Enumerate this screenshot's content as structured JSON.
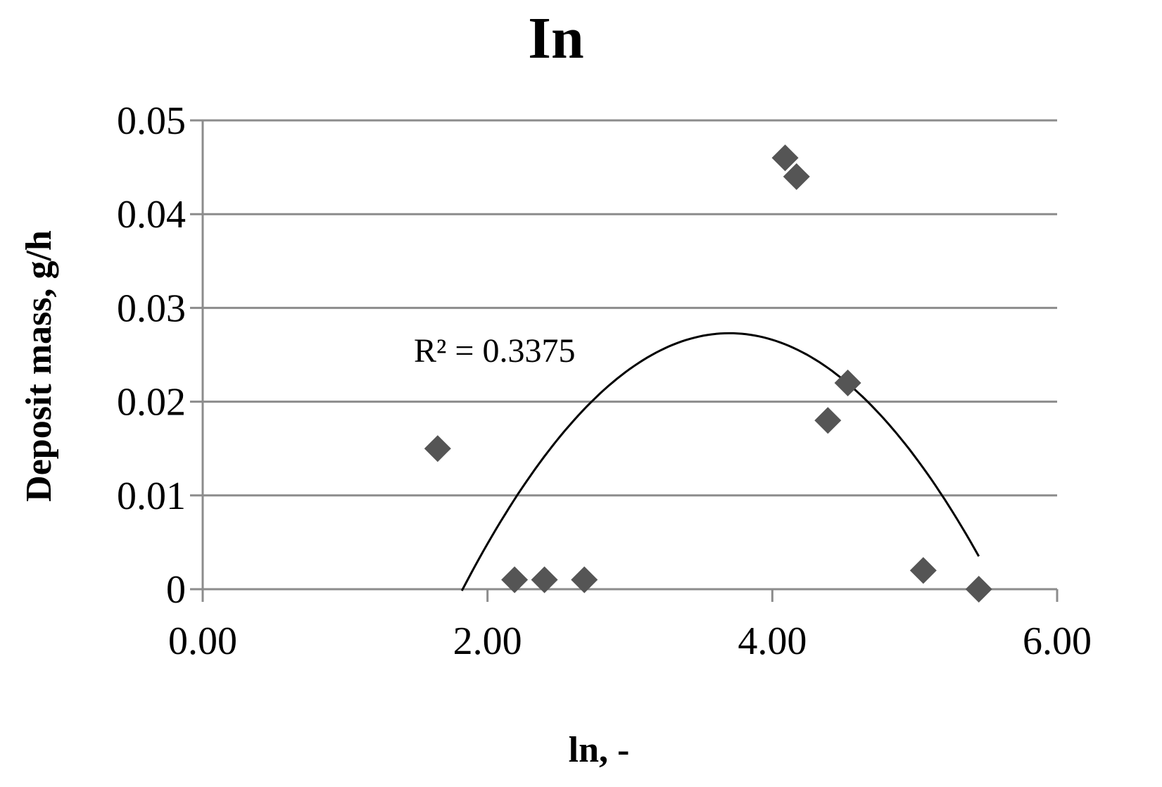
{
  "chart_data": {
    "type": "scatter",
    "title": "In",
    "xlabel": "ln, -",
    "ylabel": "Deposit mass, g/h",
    "xlim": [
      0,
      6
    ],
    "ylim": [
      0,
      0.05
    ],
    "x_ticks": [
      0,
      2,
      4,
      6
    ],
    "x_tick_labels": [
      "0.00",
      "2.00",
      "4.00",
      "6.00"
    ],
    "y_ticks": [
      0,
      0.01,
      0.02,
      0.03,
      0.04,
      0.05
    ],
    "y_tick_labels": [
      "0",
      "0.01",
      "0.02",
      "0.03",
      "0.04",
      "0.05"
    ],
    "grid": "horizontal",
    "legend": "none",
    "series": [
      {
        "marker": "diamond",
        "color": "#555555",
        "points": [
          {
            "x": 1.65,
            "y": 0.015
          },
          {
            "x": 2.19,
            "y": 0.001
          },
          {
            "x": 2.4,
            "y": 0.001
          },
          {
            "x": 2.68,
            "y": 0.001
          },
          {
            "x": 4.09,
            "y": 0.046
          },
          {
            "x": 4.17,
            "y": 0.044
          },
          {
            "x": 4.39,
            "y": 0.018
          },
          {
            "x": 4.53,
            "y": 0.022
          },
          {
            "x": 5.06,
            "y": 0.002
          },
          {
            "x": 5.45,
            "y": 0.0
          }
        ]
      }
    ],
    "trendline": {
      "type": "polynomial",
      "order": 2,
      "color": "#000000",
      "x_range": [
        1.82,
        5.45
      ],
      "vertex": {
        "x": 3.7,
        "y": 0.0273
      },
      "a": -0.00777
    },
    "annotations": [
      {
        "text": "R² = 0.3375"
      }
    ]
  }
}
